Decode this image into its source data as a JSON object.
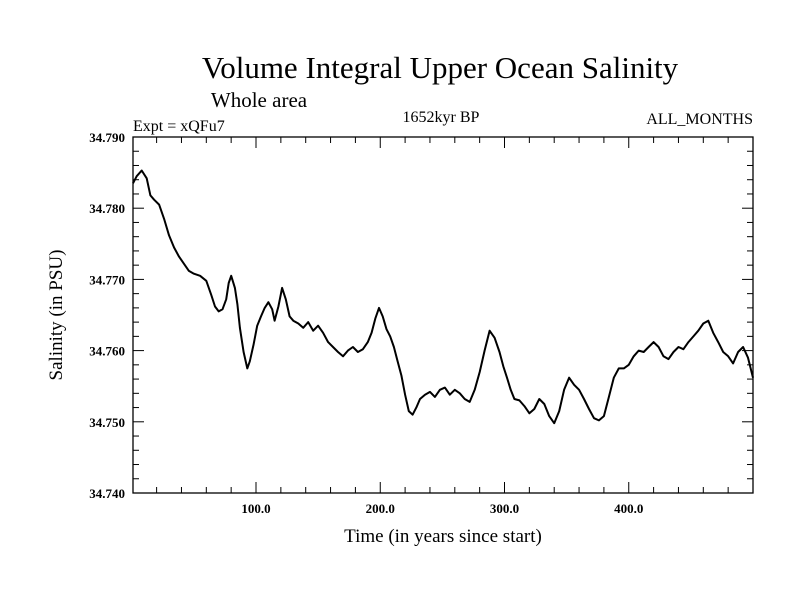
{
  "chart_data": {
    "type": "line",
    "title": "Volume Integral Upper Ocean Salinity",
    "subtitle": "Whole area",
    "experiment": "Expt = xQFu7",
    "period": "1652kyr BP",
    "months": "ALL_MONTHS",
    "xlabel": "Time (in years since start)",
    "ylabel": "Salinity (in PSU)",
    "xlim": [
      1,
      500
    ],
    "ylim": [
      34.74,
      34.79
    ],
    "xticks": [
      100,
      200,
      300,
      400
    ],
    "xtick_labels": [
      "100.0",
      "200.0",
      "300.0",
      "400.0"
    ],
    "yticks": [
      34.74,
      34.75,
      34.76,
      34.77,
      34.78,
      34.79
    ],
    "ytick_labels": [
      "34.740",
      "34.750",
      "34.760",
      "34.770",
      "34.780",
      "34.790"
    ],
    "grid": false,
    "series": [
      {
        "name": "Salinity",
        "x": [
          1,
          4,
          8,
          12,
          15,
          18,
          22,
          26,
          30,
          34,
          38,
          42,
          46,
          50,
          55,
          60,
          64,
          67,
          70,
          73,
          76,
          78,
          80,
          83,
          85,
          87,
          90,
          93,
          95,
          98,
          101,
          104,
          107,
          110,
          113,
          115,
          118,
          121,
          124,
          127,
          130,
          134,
          138,
          142,
          146,
          150,
          154,
          158,
          162,
          166,
          170,
          174,
          178,
          182,
          186,
          190,
          193,
          196,
          199,
          202,
          205,
          208,
          211,
          214,
          217,
          220,
          223,
          226,
          229,
          232,
          236,
          240,
          244,
          248,
          252,
          256,
          260,
          264,
          268,
          272,
          276,
          280,
          284,
          288,
          292,
          296,
          299,
          302,
          305,
          308,
          312,
          316,
          320,
          324,
          328,
          332,
          336,
          340,
          344,
          348,
          352,
          356,
          360,
          364,
          368,
          372,
          376,
          380,
          384,
          388,
          392,
          396,
          400,
          404,
          408,
          412,
          416,
          420,
          424,
          428,
          432,
          436,
          440,
          444,
          448,
          452,
          456,
          460,
          464,
          468,
          472,
          476,
          480,
          484,
          488,
          492,
          496,
          500
        ],
        "values": [
          34.7835,
          34.7845,
          34.7853,
          34.7842,
          34.7818,
          34.7812,
          34.7805,
          34.7785,
          34.7762,
          34.7745,
          34.7732,
          34.7722,
          34.7712,
          34.7708,
          34.7705,
          34.7698,
          34.7678,
          34.7662,
          34.7655,
          34.7658,
          34.7672,
          34.7695,
          34.7705,
          34.7688,
          34.7665,
          34.7632,
          34.7598,
          34.7575,
          34.7585,
          34.7608,
          34.7635,
          34.7648,
          34.766,
          34.7668,
          34.7658,
          34.7642,
          34.7662,
          34.7688,
          34.7672,
          34.7648,
          34.7642,
          34.7638,
          34.7632,
          34.764,
          34.7628,
          34.7635,
          34.7625,
          34.7612,
          34.7605,
          34.7598,
          34.7592,
          34.76,
          34.7605,
          34.7598,
          34.7602,
          34.7612,
          34.7625,
          34.7645,
          34.766,
          34.7648,
          34.763,
          34.762,
          34.7605,
          34.7585,
          34.7565,
          34.7538,
          34.7515,
          34.751,
          34.752,
          34.7532,
          34.7538,
          34.7542,
          34.7535,
          34.7545,
          34.7548,
          34.7538,
          34.7545,
          34.754,
          34.7532,
          34.7528,
          34.7545,
          34.757,
          34.76,
          34.7628,
          34.7618,
          34.7598,
          34.7578,
          34.7562,
          34.7545,
          34.7532,
          34.753,
          34.7522,
          34.7512,
          34.7518,
          34.7532,
          34.7525,
          34.7508,
          34.7498,
          34.7515,
          34.7545,
          34.7562,
          34.7552,
          34.7545,
          34.7532,
          34.7518,
          34.7505,
          34.7502,
          34.7508,
          34.7535,
          34.7562,
          34.7575,
          34.7575,
          34.758,
          34.7592,
          34.76,
          34.7598,
          34.7605,
          34.7612,
          34.7605,
          34.7592,
          34.7588,
          34.7598,
          34.7605,
          34.7602,
          34.7612,
          34.762,
          34.7628,
          34.7638,
          34.7642,
          34.7625,
          34.7612,
          34.7598,
          34.7592,
          34.7582,
          34.7598,
          34.7605,
          34.759,
          34.7562
        ]
      }
    ]
  }
}
